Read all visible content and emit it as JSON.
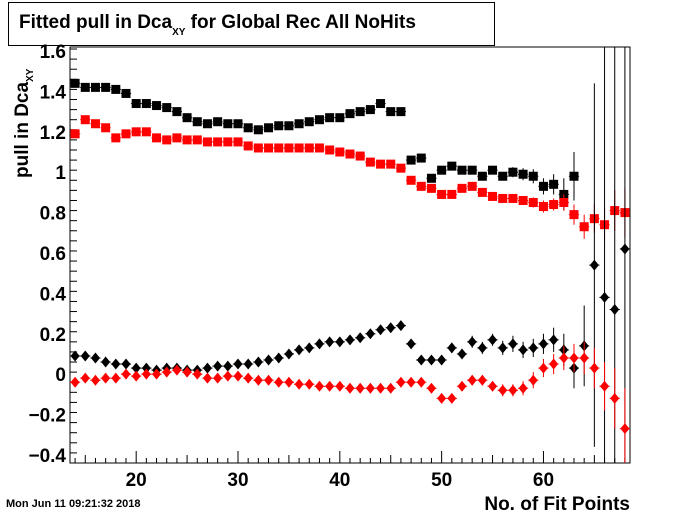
{
  "title": "Fitted pull in Dca",
  "title_sub": "XY",
  "title_rest": " for Global Rec All NoHits",
  "timestamp": "Mon Jun 11 09:21:32 2018",
  "chart_data": {
    "type": "scatter",
    "title": "Fitted pull in Dca_XY for Global Rec All NoHits",
    "xlabel": "No. of Fit Points",
    "ylabel": "pull in Dca_XY",
    "xlim": [
      13.5,
      68.5
    ],
    "ylim": [
      -0.44,
      1.62
    ],
    "x_ticks": [
      20,
      30,
      40,
      50,
      60
    ],
    "y_ticks": [
      -0.4,
      -0.2,
      0,
      0.2,
      0.4,
      0.6,
      0.8,
      1,
      1.2,
      1.4,
      1.6
    ],
    "grid": false,
    "series": [
      {
        "marker": "square",
        "color": "#000000",
        "x": [
          14,
          15,
          16,
          17,
          18,
          19,
          20,
          21,
          22,
          23,
          24,
          25,
          26,
          27,
          28,
          29,
          30,
          31,
          32,
          33,
          34,
          35,
          36,
          37,
          38,
          39,
          40,
          41,
          42,
          43,
          44,
          45,
          46,
          47,
          48,
          49,
          50,
          51,
          52,
          53,
          54,
          55,
          56,
          57,
          58,
          59,
          60,
          61,
          62,
          63
        ],
        "y": [
          1.44,
          1.42,
          1.42,
          1.42,
          1.41,
          1.39,
          1.34,
          1.34,
          1.33,
          1.32,
          1.3,
          1.27,
          1.25,
          1.24,
          1.25,
          1.24,
          1.24,
          1.22,
          1.21,
          1.22,
          1.23,
          1.23,
          1.24,
          1.25,
          1.26,
          1.27,
          1.27,
          1.29,
          1.3,
          1.31,
          1.34,
          1.3,
          1.3,
          1.06,
          1.07,
          0.97,
          1.01,
          1.03,
          1.01,
          1.01,
          0.98,
          1.01,
          0.98,
          1.0,
          0.99,
          0.98,
          0.93,
          0.94,
          0.89,
          0.98
        ],
        "err": [
          0,
          0,
          0,
          0,
          0,
          0,
          0,
          0,
          0,
          0,
          0,
          0,
          0,
          0,
          0,
          0,
          0,
          0,
          0,
          0,
          0,
          0,
          0,
          0,
          0,
          0,
          0,
          0,
          0,
          0,
          0,
          0,
          0,
          0.012,
          0.012,
          0.015,
          0.015,
          0.015,
          0.015,
          0.018,
          0.02,
          0.02,
          0.02,
          0.025,
          0.03,
          0.035,
          0.04,
          0.05,
          0.08,
          0.12
        ]
      },
      {
        "marker": "square",
        "color": "#ff0000",
        "x": [
          14,
          15,
          16,
          17,
          18,
          19,
          20,
          21,
          22,
          23,
          24,
          25,
          26,
          27,
          28,
          29,
          30,
          31,
          32,
          33,
          34,
          35,
          36,
          37,
          38,
          39,
          40,
          41,
          42,
          43,
          44,
          45,
          46,
          47,
          48,
          49,
          50,
          51,
          52,
          53,
          54,
          55,
          56,
          57,
          58,
          59,
          60,
          61,
          62,
          63,
          64,
          65,
          66,
          67,
          68
        ],
        "y": [
          1.19,
          1.26,
          1.24,
          1.22,
          1.17,
          1.19,
          1.2,
          1.2,
          1.17,
          1.16,
          1.17,
          1.16,
          1.16,
          1.15,
          1.15,
          1.15,
          1.15,
          1.13,
          1.12,
          1.12,
          1.12,
          1.12,
          1.12,
          1.12,
          1.12,
          1.11,
          1.1,
          1.09,
          1.08,
          1.05,
          1.04,
          1.04,
          1.02,
          0.96,
          0.93,
          0.92,
          0.89,
          0.89,
          0.92,
          0.93,
          0.9,
          0.88,
          0.87,
          0.87,
          0.86,
          0.85,
          0.83,
          0.84,
          0.85,
          0.79,
          0.73,
          0.77,
          0.74,
          0.81,
          0.8
        ],
        "err": [
          0,
          0,
          0,
          0,
          0,
          0,
          0,
          0,
          0,
          0,
          0,
          0,
          0,
          0,
          0,
          0,
          0,
          0,
          0,
          0,
          0,
          0,
          0,
          0,
          0,
          0,
          0,
          0,
          0,
          0,
          0,
          0,
          0,
          0.01,
          0.01,
          0.01,
          0.012,
          0.012,
          0.012,
          0.015,
          0.015,
          0.015,
          0.018,
          0.02,
          0.02,
          0.025,
          0.03,
          0.03,
          0.04,
          0.05,
          0.06,
          0.07,
          0.08,
          0.1,
          0.12
        ]
      },
      {
        "marker": "diamond",
        "color": "#000000",
        "x": [
          14,
          15,
          16,
          17,
          18,
          19,
          20,
          21,
          22,
          23,
          24,
          25,
          26,
          27,
          28,
          29,
          30,
          31,
          32,
          33,
          34,
          35,
          36,
          37,
          38,
          39,
          40,
          41,
          42,
          43,
          44,
          45,
          46,
          47,
          48,
          49,
          50,
          51,
          52,
          53,
          54,
          55,
          56,
          57,
          58,
          59,
          60,
          61,
          62,
          63,
          64,
          65,
          66,
          67,
          68
        ],
        "y": [
          0.09,
          0.09,
          0.08,
          0.06,
          0.05,
          0.05,
          0.03,
          0.03,
          0.02,
          0.03,
          0.03,
          0.02,
          0.02,
          0.03,
          0.04,
          0.04,
          0.05,
          0.05,
          0.06,
          0.07,
          0.08,
          0.1,
          0.12,
          0.13,
          0.15,
          0.16,
          0.16,
          0.17,
          0.18,
          0.2,
          0.22,
          0.23,
          0.24,
          0.15,
          0.07,
          0.07,
          0.07,
          0.13,
          0.1,
          0.16,
          0.13,
          0.17,
          0.13,
          0.15,
          0.12,
          0.13,
          0.15,
          0.17,
          0.12,
          0.03,
          0.14,
          0.54,
          0.38,
          0.32,
          0.62
        ],
        "err": [
          0,
          0,
          0,
          0,
          0,
          0,
          0,
          0,
          0,
          0,
          0,
          0,
          0,
          0,
          0,
          0,
          0,
          0,
          0,
          0,
          0,
          0,
          0,
          0,
          0,
          0,
          0,
          0,
          0,
          0,
          0,
          0,
          0,
          0.02,
          0.02,
          0.02,
          0.02,
          0.025,
          0.025,
          0.03,
          0.03,
          0.03,
          0.035,
          0.04,
          0.04,
          0.045,
          0.05,
          0.06,
          0.08,
          0.1,
          0.2,
          0.9,
          1.5,
          1.6,
          1.6
        ]
      },
      {
        "marker": "diamond",
        "color": "#ff0000",
        "x": [
          14,
          15,
          16,
          17,
          18,
          19,
          20,
          21,
          22,
          23,
          24,
          25,
          26,
          27,
          28,
          29,
          30,
          31,
          32,
          33,
          34,
          35,
          36,
          37,
          38,
          39,
          40,
          41,
          42,
          43,
          44,
          45,
          46,
          47,
          48,
          49,
          50,
          51,
          52,
          53,
          54,
          55,
          56,
          57,
          58,
          59,
          60,
          61,
          62,
          63,
          64,
          65,
          66,
          67,
          68
        ],
        "y": [
          -0.04,
          -0.02,
          -0.03,
          -0.02,
          -0.02,
          0.0,
          -0.01,
          0.0,
          0.0,
          0.01,
          0.02,
          0.01,
          0.0,
          -0.02,
          -0.02,
          -0.01,
          -0.01,
          -0.02,
          -0.03,
          -0.03,
          -0.04,
          -0.04,
          -0.05,
          -0.05,
          -0.06,
          -0.06,
          -0.06,
          -0.07,
          -0.07,
          -0.07,
          -0.07,
          -0.07,
          -0.04,
          -0.04,
          -0.04,
          -0.07,
          -0.12,
          -0.12,
          -0.06,
          -0.03,
          -0.03,
          -0.06,
          -0.08,
          -0.08,
          -0.07,
          -0.03,
          0.03,
          0.05,
          0.08,
          0.08,
          0.08,
          0.03,
          -0.06,
          -0.12,
          -0.27
        ],
        "err": [
          0,
          0,
          0,
          0,
          0,
          0,
          0,
          0,
          0,
          0,
          0,
          0,
          0,
          0,
          0,
          0,
          0,
          0,
          0,
          0,
          0,
          0,
          0,
          0,
          0,
          0,
          0,
          0,
          0,
          0,
          0,
          0,
          0,
          0.015,
          0.015,
          0.015,
          0.02,
          0.02,
          0.02,
          0.025,
          0.025,
          0.025,
          0.03,
          0.03,
          0.035,
          0.04,
          0.045,
          0.05,
          0.06,
          0.07,
          0.08,
          0.1,
          0.12,
          0.15,
          0.2
        ]
      }
    ]
  }
}
